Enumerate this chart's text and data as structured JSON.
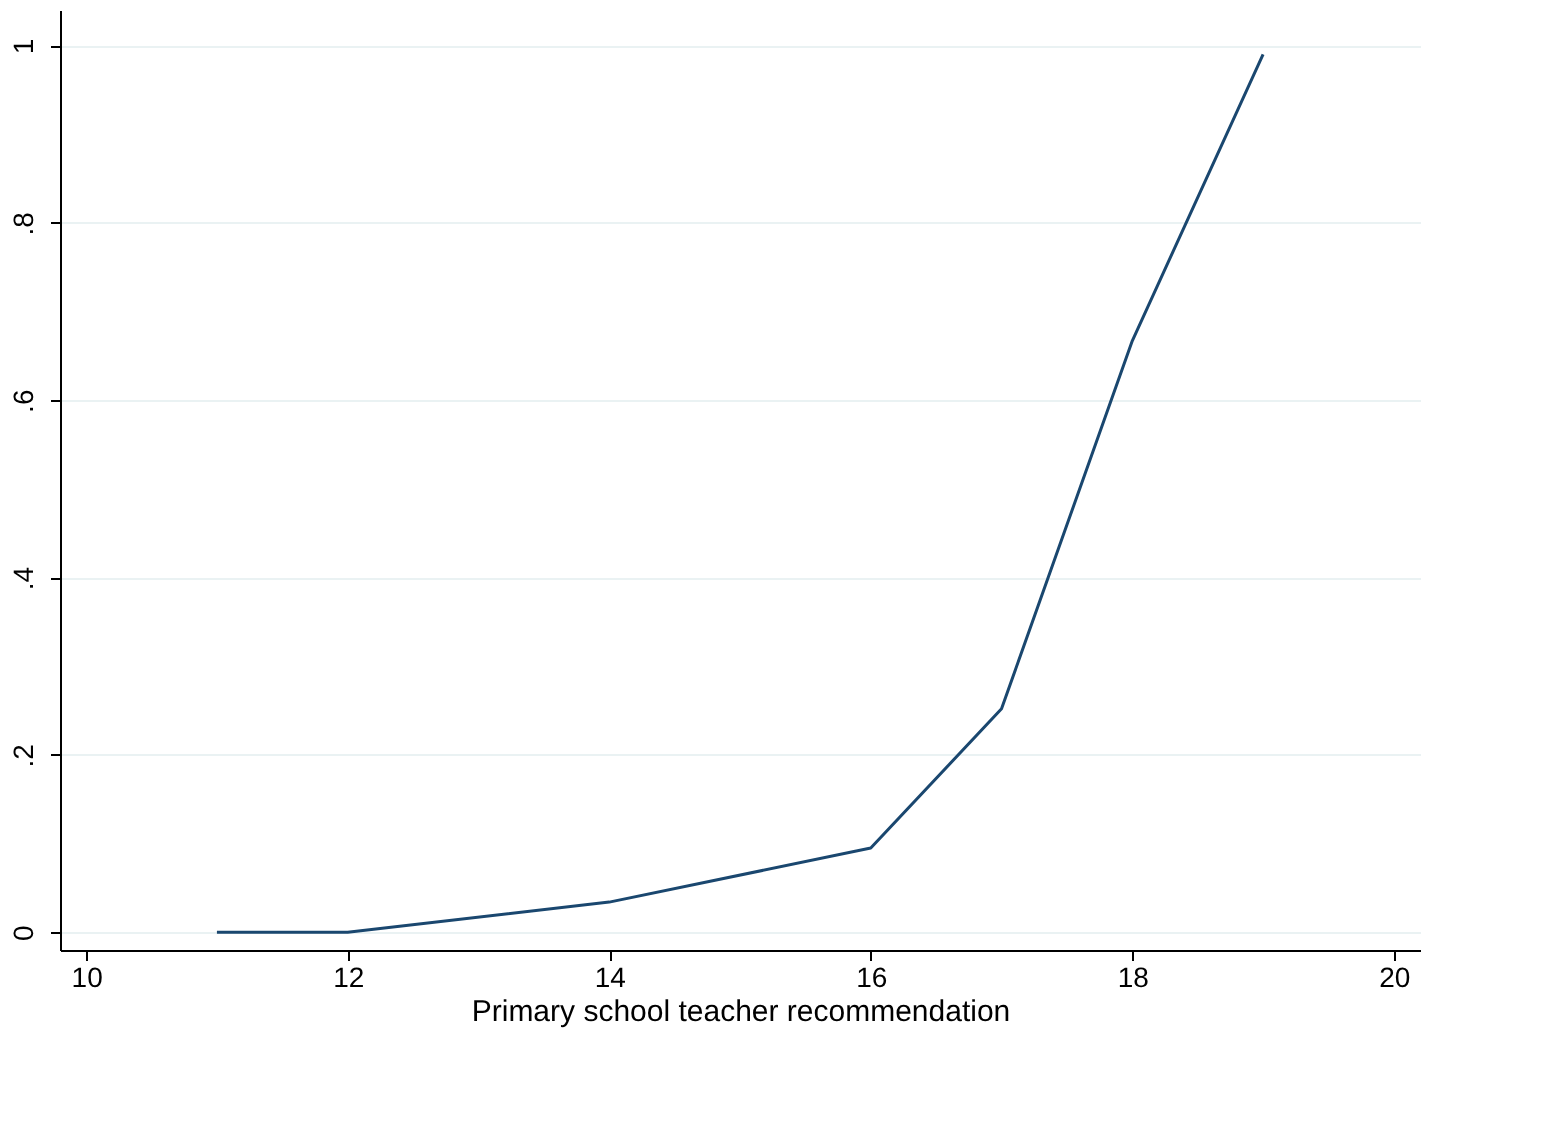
{
  "chart_data": {
    "type": "line",
    "xlabel": "Primary school teacher recommendation",
    "x": [
      11,
      12,
      14,
      16,
      17,
      18,
      19
    ],
    "series": [
      {
        "color": "#1a476f",
        "values": [
          0,
          0,
          0.034,
          0.095,
          0.252,
          0.667,
          0.99
        ]
      }
    ],
    "xlim": [
      9.8,
      20.2
    ],
    "xticks": [
      10,
      12,
      14,
      16,
      18,
      20
    ],
    "ylim": [
      -0.02,
      1.04
    ],
    "yticks": [
      0,
      {
        "value": 0.2,
        "label": ".2"
      },
      {
        "value": 0.4,
        "label": ".4"
      },
      {
        "value": 0.6,
        "label": ".6"
      },
      {
        "value": 0.8,
        "label": ".8"
      },
      1
    ],
    "grid": "y",
    "marker": "none",
    "line_style": "solid"
  }
}
